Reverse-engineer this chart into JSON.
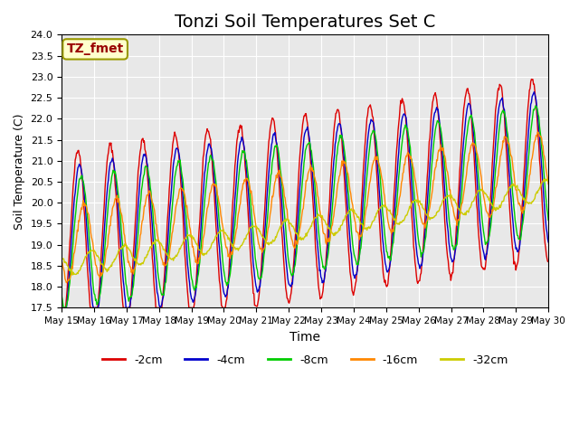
{
  "title": "Tonzi Soil Temperatures Set C",
  "xlabel": "Time",
  "ylabel": "Soil Temperature (C)",
  "annotation": "TZ_fmet",
  "annotation_bg": "#ffffcc",
  "annotation_border": "#999900",
  "annotation_text_color": "#990000",
  "ylim": [
    17.5,
    24.0
  ],
  "yticks": [
    17.5,
    18.0,
    18.5,
    19.0,
    19.5,
    20.0,
    20.5,
    21.0,
    21.5,
    22.0,
    22.5,
    23.0,
    23.5,
    24.0
  ],
  "xtick_labels": [
    "May 15",
    "May 16",
    "May 17",
    "May 18",
    "May 19",
    "May 20",
    "May 21",
    "May 22",
    "May 23",
    "May 24",
    "May 25",
    "May 26",
    "May 27",
    "May 28",
    "May 29",
    "May 30"
  ],
  "series_colors": [
    "#dd0000",
    "#0000cc",
    "#00cc00",
    "#ff8800",
    "#cccc00"
  ],
  "series_labels": [
    "-2cm",
    "-4cm",
    "-8cm",
    "-16cm",
    "-32cm"
  ],
  "background_color": "#e8e8e8",
  "grid_color": "#ffffff",
  "title_fontsize": 14
}
